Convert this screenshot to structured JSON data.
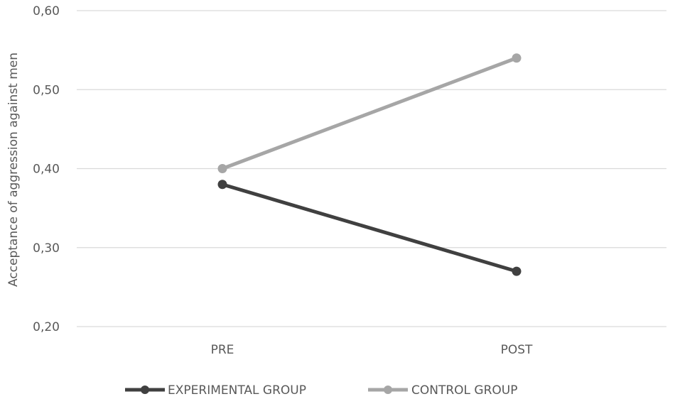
{
  "chart_data": {
    "type": "line",
    "categories": [
      "PRE",
      "POST"
    ],
    "ylabel": "Acceptance of aggression against men",
    "xlabel": "",
    "ylim": [
      0.2,
      0.6
    ],
    "yticks": [
      "0,60",
      "0,50",
      "0,40",
      "0,30",
      "0,20"
    ],
    "ytick_values": [
      0.6,
      0.5,
      0.4,
      0.3,
      0.2
    ],
    "grid": true,
    "legend_position": "bottom",
    "series": [
      {
        "name": "EXPERIMENTAL GROUP",
        "values": [
          0.38,
          0.27
        ],
        "color": "#404040"
      },
      {
        "name": "CONTROL GROUP",
        "values": [
          0.4,
          0.54
        ],
        "color": "#a6a6a6"
      }
    ]
  }
}
